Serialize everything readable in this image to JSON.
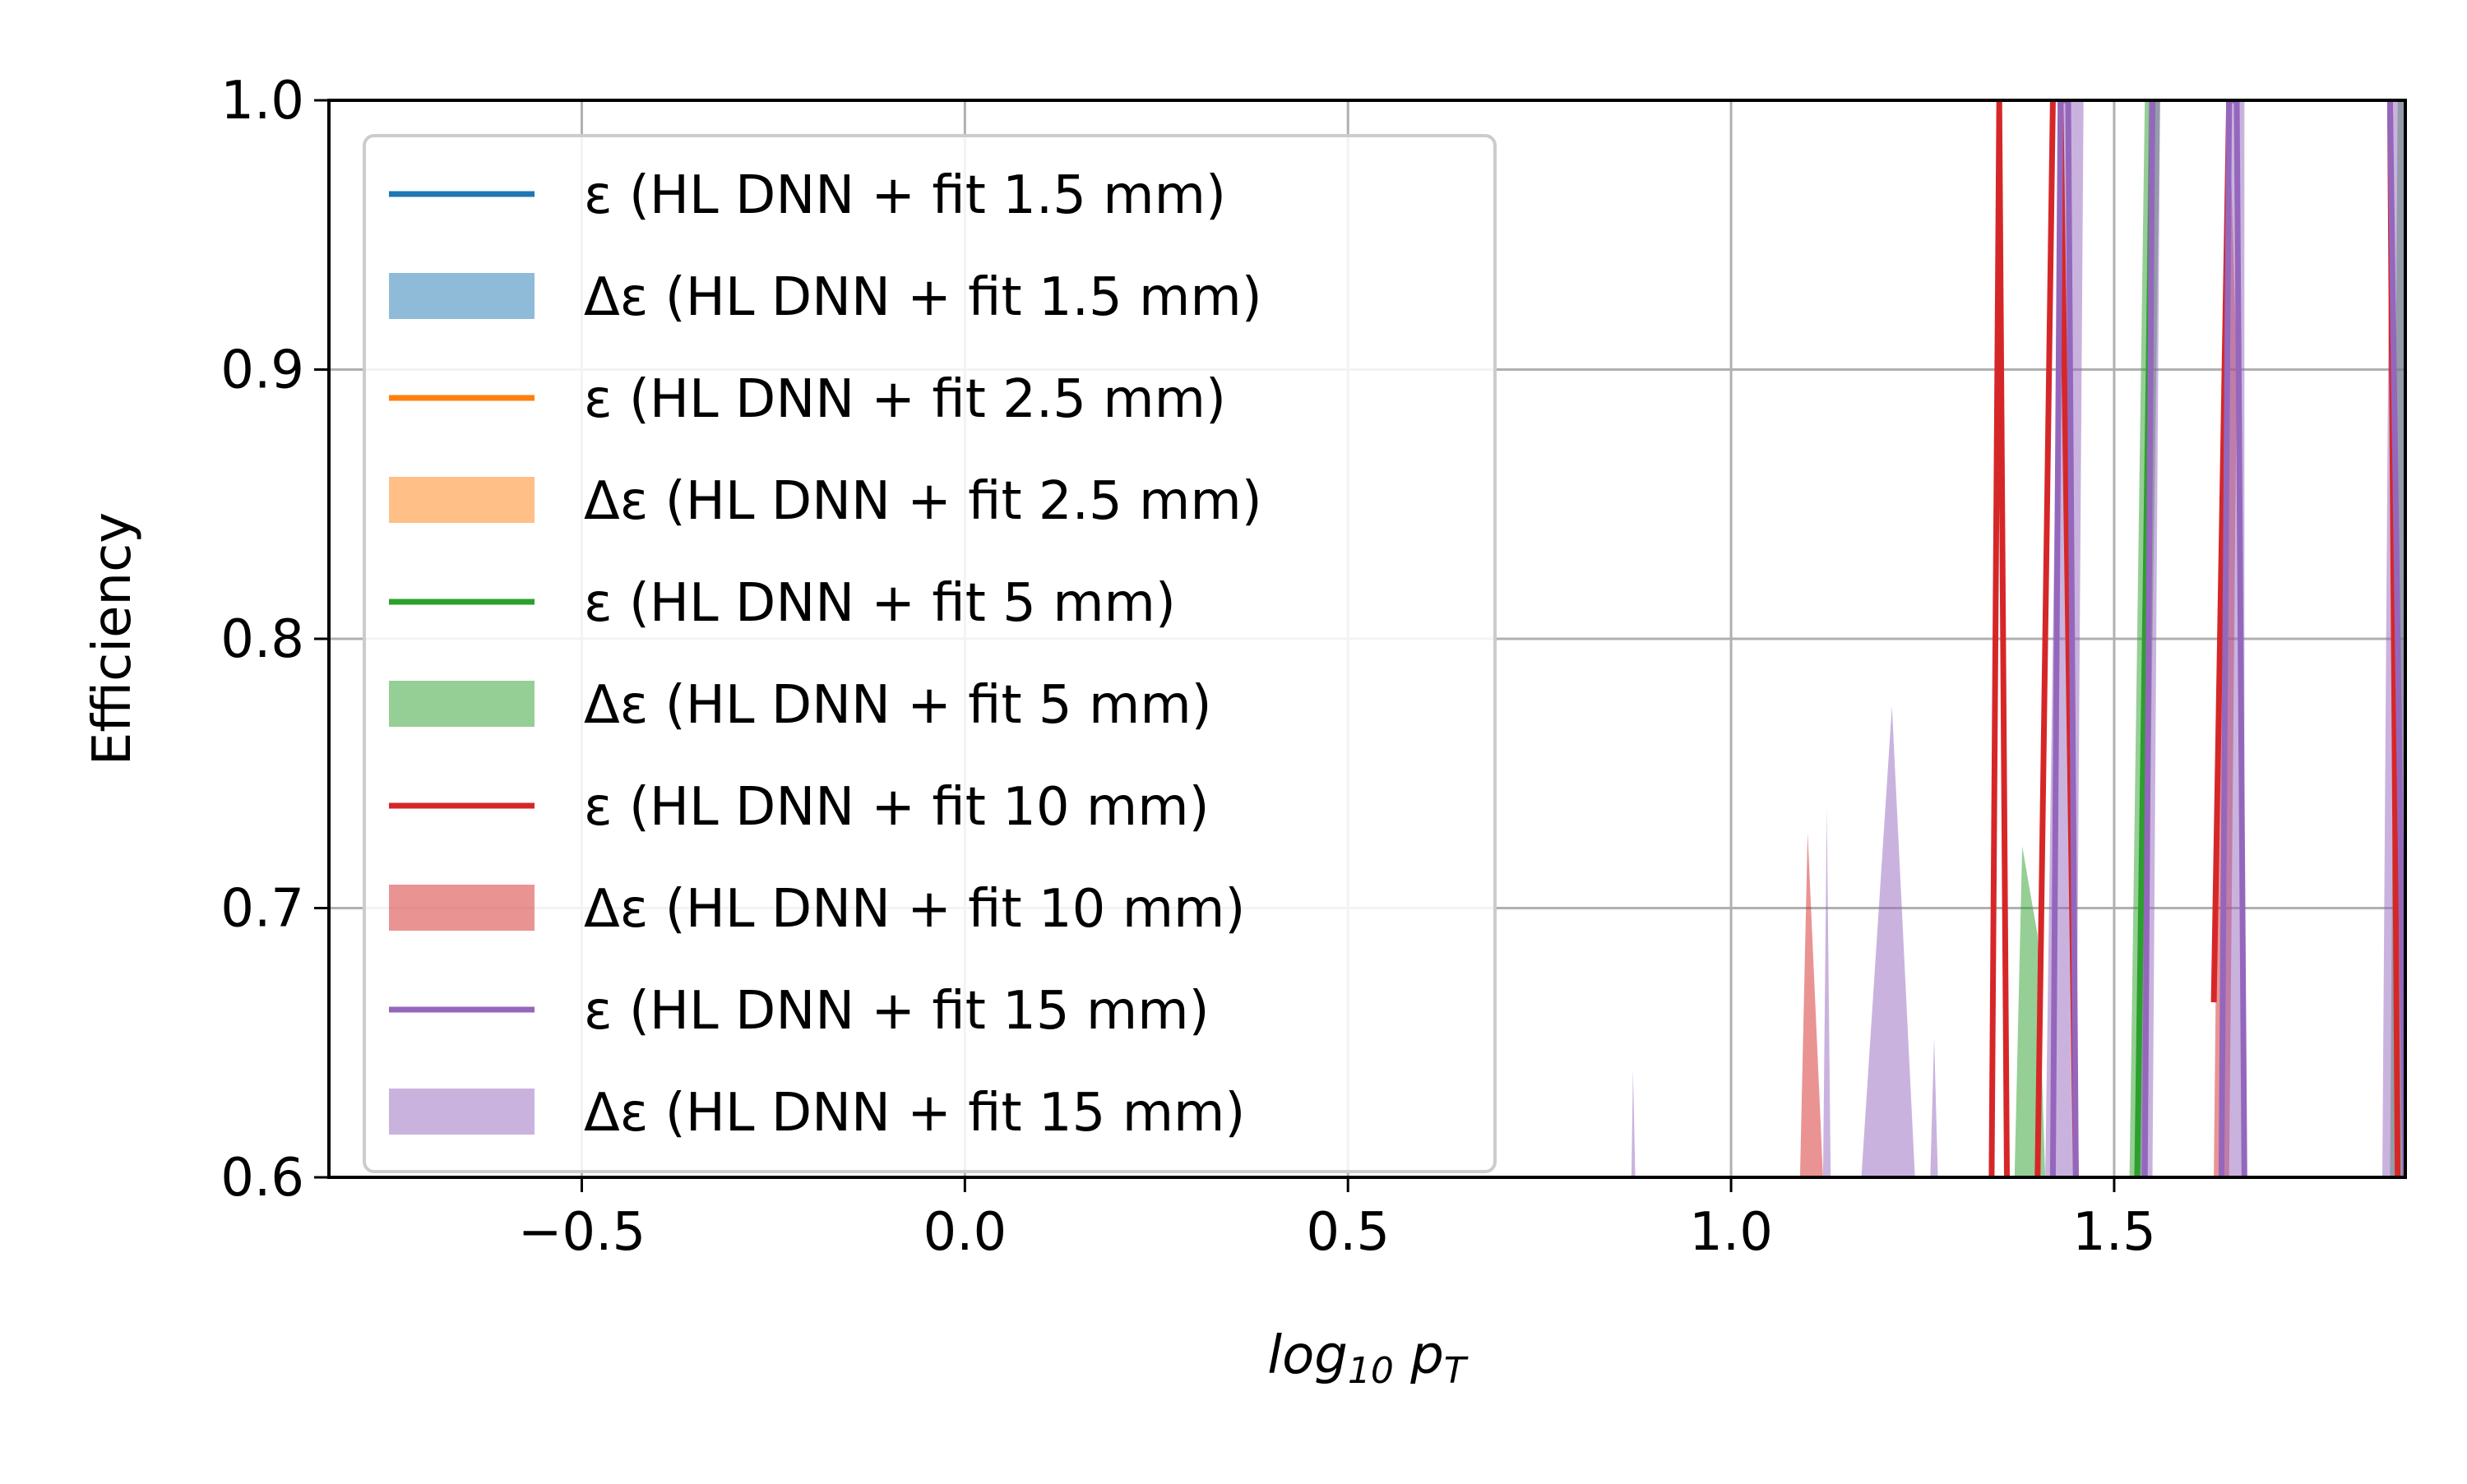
{
  "chart_data": {
    "type": "line",
    "xlabel": "log10 pT",
    "ylabel": "Efficiency",
    "xlim": [
      -0.83,
      1.88
    ],
    "ylim": [
      0.6,
      1.0
    ],
    "xticks": [
      -0.5,
      0.0,
      0.5,
      1.0,
      1.5
    ],
    "xtick_labels": [
      "−0.5",
      "0.0",
      "0.5",
      "1.0",
      "1.5"
    ],
    "yticks": [
      0.6,
      0.7,
      0.8,
      0.9,
      1.0
    ],
    "ytick_labels": [
      "0.6",
      "0.7",
      "0.8",
      "0.9",
      "1.0"
    ],
    "grid": true,
    "legend_position": "upper-left",
    "series": [
      {
        "name": "ε (HL DNN + fit 1.5 mm)",
        "band_name": "Δε (HL DNN + fit 1.5 mm)",
        "color": "#1f77b4",
        "band_color": "#1f77b4",
        "line": [],
        "band": []
      },
      {
        "name": "ε (HL DNN + fit 2.5 mm)",
        "band_name": "Δε (HL DNN + fit 2.5 mm)",
        "color": "#ff7f0e",
        "band_color": "#ff7f0e",
        "line": [],
        "band": []
      },
      {
        "name": "ε (HL DNN + fit 5 mm)",
        "band_name": "Δε (HL DNN + fit 5 mm)",
        "color": "#2ca02c",
        "band_color": "#2ca02c",
        "line": [
          [
            1.53,
            0.6
          ],
          [
            1.55,
            1.0
          ]
        ],
        "band": [
          [
            [
              1.37,
              0.6
            ],
            [
              1.38,
              0.723
            ],
            [
              1.4,
              0.69
            ],
            [
              1.41,
              0.6
            ]
          ],
          [
            [
              1.52,
              0.6
            ],
            [
              1.54,
              1.0
            ],
            [
              1.56,
              1.0
            ],
            [
              1.54,
              0.6
            ]
          ],
          [
            [
              1.86,
              0.6
            ],
            [
              1.87,
              1.0
            ],
            [
              1.88,
              1.0
            ],
            [
              1.88,
              0.6
            ]
          ]
        ]
      },
      {
        "name": "ε (HL DNN + fit 10 mm)",
        "band_name": "Δε (HL DNN + fit 10 mm)",
        "color": "#d62728",
        "band_color": "#d62728",
        "line": [
          [
            [
              1.34,
              0.6
            ],
            [
              1.35,
              1.0
            ],
            [
              1.36,
              0.6
            ]
          ],
          [
            [
              1.4,
              0.6
            ],
            [
              1.42,
              1.0
            ]
          ],
          [
            [
              1.43,
              1.0
            ],
            [
              1.45,
              0.6
            ]
          ],
          [
            [
              1.63,
              0.665
            ],
            [
              1.65,
              1.0
            ]
          ],
          [
            [
              1.86,
              1.0
            ],
            [
              1.87,
              0.6
            ]
          ]
        ],
        "band": [
          [
            [
              1.09,
              0.6
            ],
            [
              1.1,
              0.728
            ],
            [
              1.12,
              0.6
            ]
          ],
          [
            [
              1.63,
              0.6
            ],
            [
              1.64,
              0.87
            ],
            [
              1.65,
              1.0
            ],
            [
              1.66,
              0.9
            ],
            [
              1.65,
              0.6
            ]
          ]
        ]
      },
      {
        "name": "ε (HL DNN + fit 15 mm)",
        "band_name": "Δε (HL DNN + fit 15 mm)",
        "color": "#9467bd",
        "band_color": "#9467bd",
        "line": [
          [
            [
              1.42,
              0.6
            ],
            [
              1.43,
              1.0
            ],
            [
              1.44,
              1.0
            ],
            [
              1.45,
              0.6
            ]
          ],
          [
            [
              1.54,
              0.6
            ],
            [
              1.55,
              1.0
            ]
          ],
          [
            [
              1.64,
              0.6
            ],
            [
              1.65,
              1.0
            ],
            [
              1.66,
              1.0
            ],
            [
              1.67,
              0.6
            ]
          ],
          [
            [
              1.86,
              1.0
            ],
            [
              1.88,
              0.6
            ]
          ]
        ],
        "band": [
          [
            [
              0.87,
              0.6
            ],
            [
              0.872,
              0.64
            ],
            [
              0.875,
              0.6
            ]
          ],
          [
            [
              1.12,
              0.6
            ],
            [
              1.125,
              0.737
            ],
            [
              1.13,
              0.6
            ]
          ],
          [
            [
              1.17,
              0.6
            ],
            [
              1.21,
              0.775
            ],
            [
              1.24,
              0.6
            ]
          ],
          [
            [
              1.26,
              0.6
            ],
            [
              1.265,
              0.652
            ],
            [
              1.27,
              0.6
            ]
          ],
          [
            [
              1.41,
              0.6
            ],
            [
              1.43,
              1.0
            ],
            [
              1.46,
              1.0
            ],
            [
              1.45,
              0.6
            ]
          ],
          [
            [
              1.53,
              0.6
            ],
            [
              1.545,
              1.0
            ],
            [
              1.56,
              1.0
            ],
            [
              1.55,
              0.6
            ]
          ],
          [
            [
              1.64,
              0.6
            ],
            [
              1.65,
              1.0
            ],
            [
              1.67,
              1.0
            ],
            [
              1.67,
              0.6
            ]
          ],
          [
            [
              1.85,
              0.6
            ],
            [
              1.86,
              1.0
            ],
            [
              1.88,
              1.0
            ],
            [
              1.88,
              0.6
            ]
          ]
        ]
      }
    ]
  }
}
